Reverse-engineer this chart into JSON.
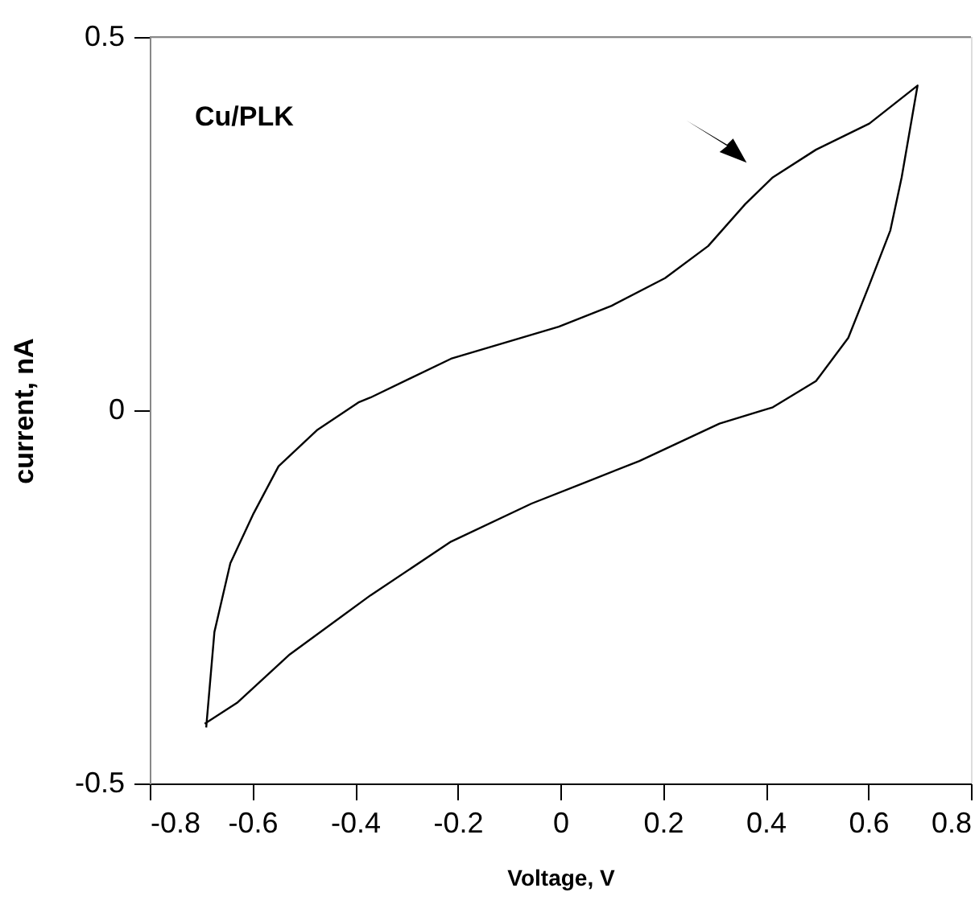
{
  "chart_data": {
    "type": "line",
    "xlabel": "Voltage, V",
    "ylabel": "current, nA",
    "annotations": [
      "Cu/PLK"
    ],
    "xlim": [
      -0.8,
      0.8
    ],
    "ylim": [
      -0.5,
      0.5
    ],
    "xticks": [
      -0.8,
      -0.6,
      -0.4,
      -0.2,
      0,
      0.2,
      0.4,
      0.6,
      0.8
    ],
    "yticks": [
      -0.5,
      0,
      0.5
    ],
    "grid": false,
    "marker": "none",
    "line_style": "solid",
    "series": [
      {
        "color": "#000000",
        "x": [
          -0.69,
          -0.674,
          -0.643,
          -0.599,
          -0.549,
          -0.473,
          -0.392,
          -0.37,
          -0.213,
          -0.003,
          0.1,
          0.204,
          0.288,
          0.36,
          0.414,
          0.498,
          0.602,
          0.696,
          0.665,
          0.643,
          0.602,
          0.561,
          0.498,
          0.414,
          0.31,
          0.154,
          0.047,
          -0.056,
          -0.213,
          -0.37,
          -0.527,
          -0.63,
          -0.693
        ],
        "values": [
          -0.425,
          -0.297,
          -0.205,
          -0.14,
          -0.075,
          -0.026,
          0.011,
          0.017,
          0.069,
          0.112,
          0.14,
          0.177,
          0.22,
          0.276,
          0.312,
          0.349,
          0.384,
          0.435,
          0.312,
          0.241,
          0.168,
          0.097,
          0.039,
          0.004,
          -0.018,
          -0.068,
          -0.097,
          -0.125,
          -0.176,
          -0.248,
          -0.327,
          -0.392,
          -0.42
        ]
      }
    ]
  }
}
